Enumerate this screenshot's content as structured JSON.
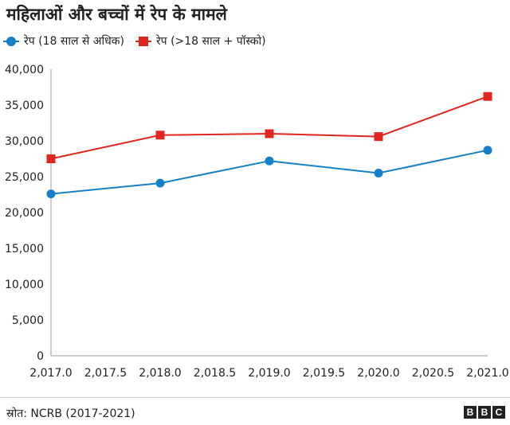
{
  "title": "महिलाओं और बच्चों में रेप के मामले",
  "source": "स्रोत: NCRB (2017-2021)",
  "logo": [
    "B",
    "B",
    "C"
  ],
  "chart_data": {
    "type": "line",
    "x": [
      2017,
      2018,
      2019,
      2020,
      2021
    ],
    "x_ticks": [
      "2,017.0",
      "2,017.5",
      "2,018.0",
      "2,018.5",
      "2,019.0",
      "2,019.5",
      "2,020.0",
      "2,020.5",
      "2,021.0"
    ],
    "y_ticks": [
      "0",
      "5,000",
      "10,000",
      "15,000",
      "20,000",
      "25,000",
      "30,000",
      "35,000",
      "40,000"
    ],
    "xlim": [
      2017,
      2021
    ],
    "ylim": [
      0,
      40000
    ],
    "grid": false,
    "legend_position": "top-left",
    "series": [
      {
        "name": "रेप (18 साल से अधिक)",
        "color": "#1380c8",
        "marker": "circle",
        "values": [
          22600,
          24100,
          27200,
          25500,
          28700
        ]
      },
      {
        "name": "रेप (>18 साल + पॉस्को)",
        "color": "#e0261f",
        "marker": "square",
        "values": [
          27500,
          30800,
          31000,
          30600,
          36200
        ]
      }
    ]
  }
}
